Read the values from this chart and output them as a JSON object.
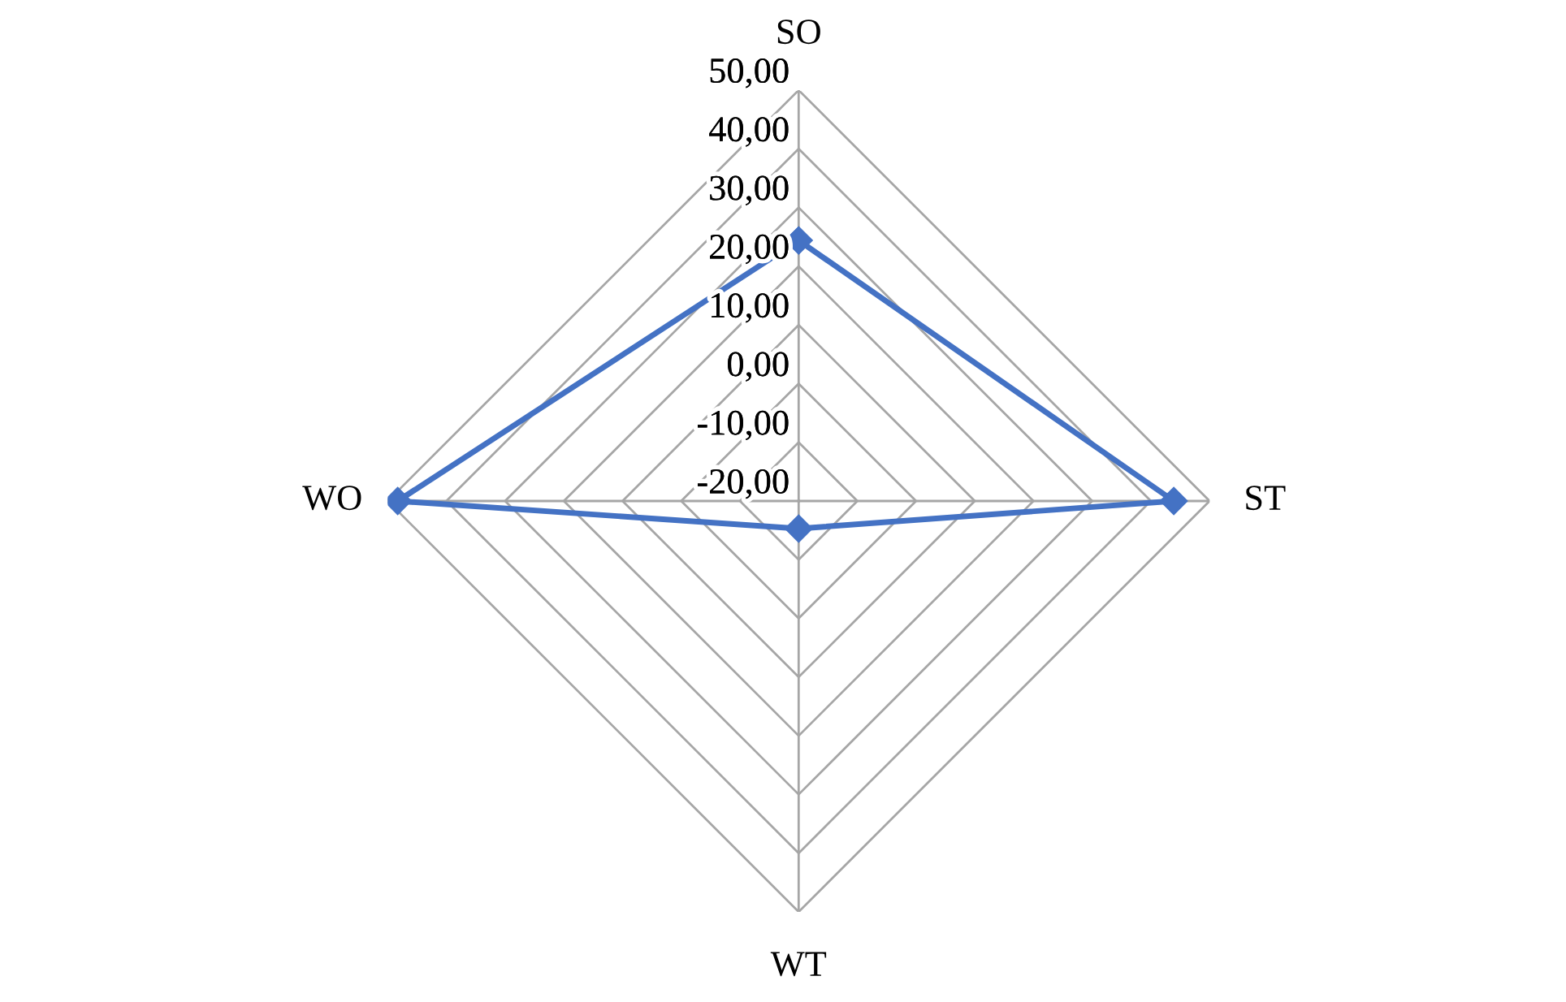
{
  "chart_data": {
    "type": "radar",
    "categories": [
      "SO",
      "ST",
      "WT",
      "WO"
    ],
    "series": [
      {
        "color": "#4472c4",
        "values": [
          24.4,
          43.9,
          -15.3,
          48.3
        ]
      }
    ],
    "ylim": [
      -20,
      50
    ],
    "yticks": [
      {
        "value": -20,
        "label": "-20,00"
      },
      {
        "value": -10,
        "label": "-10,00"
      },
      {
        "value": 0,
        "label": "0,00"
      },
      {
        "value": 10,
        "label": "10,00"
      },
      {
        "value": 20,
        "label": "20,00"
      },
      {
        "value": 30,
        "label": "30,00"
      },
      {
        "value": 40,
        "label": "40,00"
      },
      {
        "value": 50,
        "label": "50,00"
      }
    ],
    "grid": true,
    "marker": "diamond",
    "line_style": "solid"
  }
}
